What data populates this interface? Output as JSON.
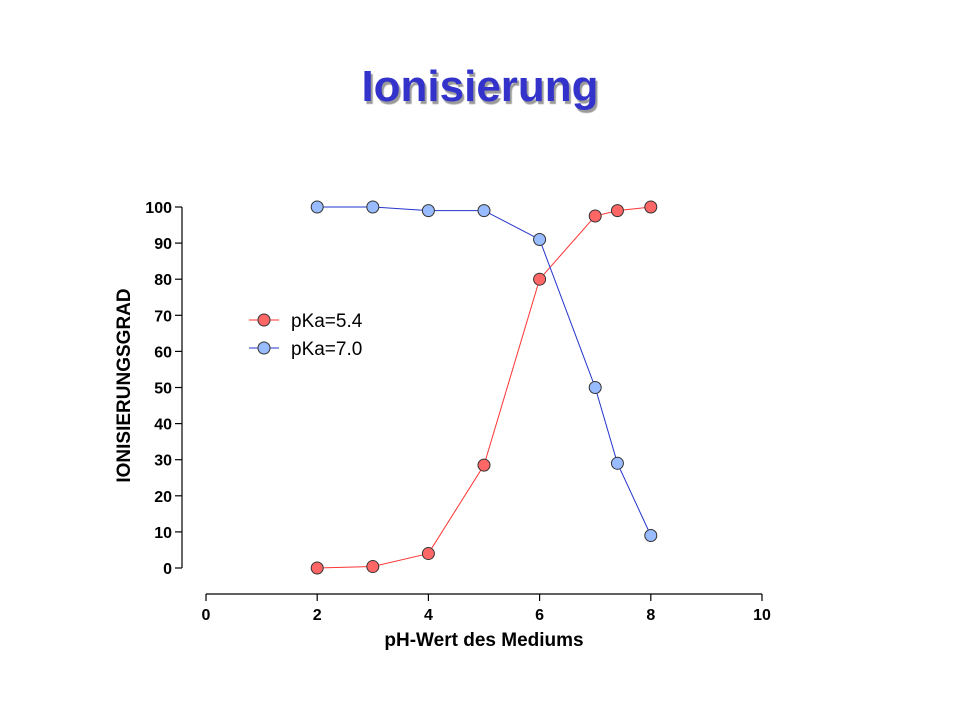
{
  "slide": {
    "title": "Ionisierung"
  },
  "chart_data": {
    "type": "line",
    "title": "",
    "xlabel": "pH-Wert des Mediums",
    "ylabel": "IONISIERUNGSGRAD",
    "xlim": [
      0,
      10
    ],
    "ylim": [
      0,
      100
    ],
    "xticks": [
      0,
      2,
      4,
      6,
      8,
      10
    ],
    "yticks": [
      0,
      10,
      20,
      30,
      40,
      50,
      60,
      70,
      80,
      90,
      100
    ],
    "grid": false,
    "legend_position": "upper-left",
    "series": [
      {
        "name": "pKa=5.4",
        "color": "#ff6666",
        "line_color": "#ff3333",
        "x": [
          2,
          3,
          4,
          5,
          6,
          7,
          7.4,
          8
        ],
        "y": [
          0,
          0.4,
          4,
          28.5,
          80,
          97.5,
          99,
          100
        ]
      },
      {
        "name": "pKa=7.0",
        "color": "#99bbff",
        "line_color": "#2233cc",
        "x": [
          2,
          3,
          4,
          5,
          6,
          7,
          7.4,
          8
        ],
        "y": [
          100,
          100,
          99,
          99,
          91,
          50,
          29,
          9
        ]
      }
    ]
  }
}
